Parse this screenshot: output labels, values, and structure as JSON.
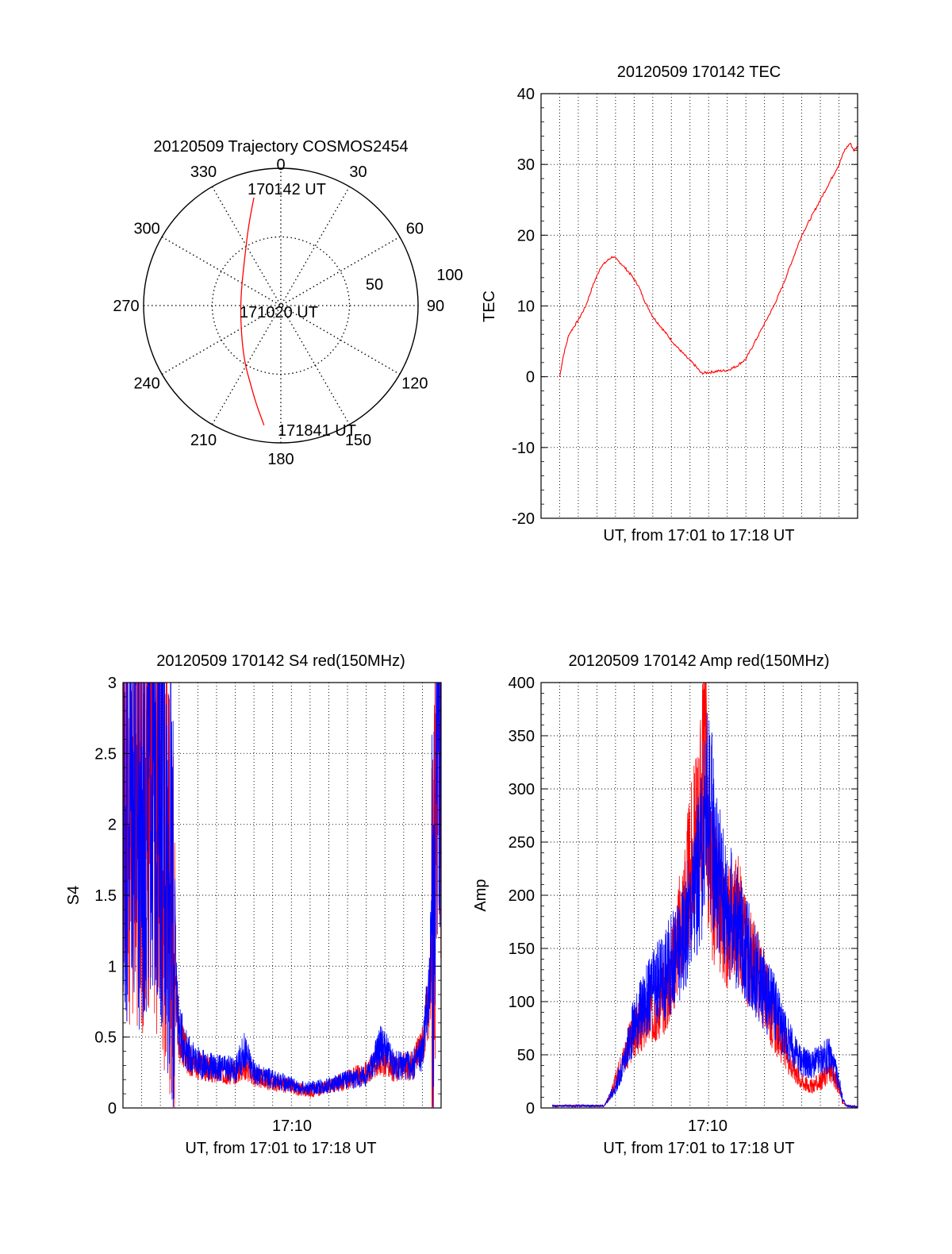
{
  "panels": {
    "polar": {
      "title": "20120509 Trajectory COSMOS2454"
    },
    "tec": {
      "title": "20120509 170142 TEC",
      "xlabel": "UT, from 17:01 to 17:18 UT",
      "ylabel": "TEC"
    },
    "s4": {
      "title": "20120509 170142 S4 red(150MHz)",
      "xlabel": "UT, from 17:01 to 17:18 UT",
      "ylabel": "S4",
      "xtick": "17:10"
    },
    "amp": {
      "title": "20120509 170142 Amp red(150MHz)",
      "xlabel": "UT, from 17:01 to 17:18 UT",
      "ylabel": "Amp",
      "xtick": "17:10"
    }
  },
  "colors": {
    "red": "#ff0000",
    "blue": "#0000ff",
    "grid": "#000000",
    "frame": "#000000"
  },
  "chart_data": [
    {
      "type": "scatter",
      "name": "polar-trajectory",
      "title": "20120509 Trajectory COSMOS2454",
      "azimuth_labels": [
        "0",
        "30",
        "60",
        "90",
        "120",
        "150",
        "180",
        "210",
        "240",
        "270",
        "300",
        "330"
      ],
      "radial_labels": [
        "50",
        "100"
      ],
      "radial_range": [
        0,
        100
      ],
      "time_labels": [
        "170142 UT",
        "171020 UT",
        "171841 UT"
      ],
      "trajectory": [
        {
          "az": 346,
          "r": 81
        },
        {
          "az": 339,
          "r": 65
        },
        {
          "az": 322,
          "r": 43
        },
        {
          "az": 283,
          "r": 30
        },
        {
          "az": 242,
          "r": 33
        },
        {
          "az": 214,
          "r": 48
        },
        {
          "az": 200,
          "r": 63
        },
        {
          "az": 194,
          "r": 74
        },
        {
          "az": 188,
          "r": 88
        }
      ]
    },
    {
      "type": "line",
      "name": "tec",
      "title": "20120509 170142 TEC",
      "xlabel": "UT, from 17:01 to 17:18 UT",
      "ylabel": "TEC",
      "xlim": [
        0,
        17
      ],
      "ylim": [
        -20,
        40
      ],
      "yticks": [
        -20,
        -10,
        0,
        10,
        20,
        30,
        40
      ],
      "grid": true,
      "series": [
        {
          "color": "#ff0000",
          "points": [
            [
              1,
              0
            ],
            [
              1.2,
              3
            ],
            [
              1.5,
              6
            ],
            [
              2,
              8
            ],
            [
              2.4,
              10
            ],
            [
              2.8,
              13
            ],
            [
              3.2,
              15.5
            ],
            [
              3.6,
              16.5
            ],
            [
              3.85,
              17
            ],
            [
              4.3,
              16
            ],
            [
              4.8,
              14.5
            ],
            [
              5.2,
              13
            ],
            [
              5.6,
              10.5
            ],
            [
              6,
              8.5
            ],
            [
              6.6,
              6.5
            ],
            [
              7.2,
              4.5
            ],
            [
              7.8,
              2.8
            ],
            [
              8.3,
              1.5
            ],
            [
              8.6,
              0.5
            ],
            [
              9,
              0.6
            ],
            [
              9.5,
              0.8
            ],
            [
              10,
              0.9
            ],
            [
              10.5,
              1.5
            ],
            [
              11,
              2.5
            ],
            [
              11.5,
              5
            ],
            [
              12,
              7.5
            ],
            [
              12.5,
              10
            ],
            [
              13,
              13
            ],
            [
              13.5,
              16.5
            ],
            [
              14,
              20
            ],
            [
              14.5,
              22.5
            ],
            [
              15,
              25
            ],
            [
              15.5,
              27.5
            ],
            [
              16,
              30
            ],
            [
              16.3,
              32
            ],
            [
              16.6,
              33
            ],
            [
              16.8,
              32
            ],
            [
              17,
              32.5
            ]
          ]
        }
      ]
    },
    {
      "type": "line",
      "name": "s4",
      "title": "20120509 170142 S4 red(150MHz)",
      "xlabel": "UT, from 17:01 to 17:18 UT",
      "ylabel": "S4",
      "xtick_label": "17:10",
      "xlim": [
        0,
        17
      ],
      "ylim": [
        0,
        3
      ],
      "yticks": [
        0,
        0.5,
        1,
        1.5,
        2,
        2.5,
        3
      ],
      "grid": true,
      "series": [
        {
          "color": "#ff0000",
          "points": [
            [
              0,
              2.2
            ],
            [
              0.5,
              2
            ],
            [
              1,
              2.1
            ],
            [
              1.5,
              2.3
            ],
            [
              2,
              2
            ],
            [
              2.5,
              1.6
            ],
            [
              2.8,
              0.9
            ],
            [
              3,
              0.5
            ],
            [
              3.5,
              0.35
            ],
            [
              4,
              0.3
            ],
            [
              5,
              0.25
            ],
            [
              6,
              0.25
            ],
            [
              6.5,
              0.3
            ],
            [
              7,
              0.22
            ],
            [
              8,
              0.18
            ],
            [
              9,
              0.15
            ],
            [
              9.5,
              0.13
            ],
            [
              10,
              0.12
            ],
            [
              11,
              0.15
            ],
            [
              12,
              0.2
            ],
            [
              13,
              0.25
            ],
            [
              13.8,
              0.35
            ],
            [
              14.5,
              0.28
            ],
            [
              15.5,
              0.3
            ],
            [
              16,
              0.45
            ],
            [
              16.4,
              0.8
            ],
            [
              16.6,
              1.5
            ],
            [
              16.8,
              2.6
            ],
            [
              17,
              2.4
            ]
          ]
        },
        {
          "color": "#0000ff",
          "points": [
            [
              0,
              2.1
            ],
            [
              0.5,
              2.3
            ],
            [
              1,
              1.9
            ],
            [
              1.5,
              2.4
            ],
            [
              2,
              2.2
            ],
            [
              2.5,
              1.7
            ],
            [
              2.8,
              1
            ],
            [
              3,
              0.55
            ],
            [
              3.5,
              0.38
            ],
            [
              4,
              0.32
            ],
            [
              5,
              0.28
            ],
            [
              6,
              0.27
            ],
            [
              6.5,
              0.4
            ],
            [
              7,
              0.25
            ],
            [
              8,
              0.2
            ],
            [
              9,
              0.17
            ],
            [
              9.5,
              0.14
            ],
            [
              10,
              0.14
            ],
            [
              11,
              0.16
            ],
            [
              12,
              0.2
            ],
            [
              13,
              0.22
            ],
            [
              13.8,
              0.45
            ],
            [
              14.5,
              0.3
            ],
            [
              15.5,
              0.3
            ],
            [
              16,
              0.4
            ],
            [
              16.4,
              0.9
            ],
            [
              16.6,
              1.6
            ],
            [
              16.8,
              2.8
            ],
            [
              17,
              2.6
            ]
          ]
        }
      ]
    },
    {
      "type": "line",
      "name": "amp",
      "title": "20120509 170142 Amp red(150MHz)",
      "xlabel": "UT, from 17:01 to 17:18 UT",
      "ylabel": "Amp",
      "xtick_label": "17:10",
      "xlim": [
        0,
        17
      ],
      "ylim": [
        0,
        400
      ],
      "yticks": [
        0,
        50,
        100,
        150,
        200,
        250,
        300,
        350,
        400
      ],
      "grid": true,
      "series": [
        {
          "color": "#ff0000",
          "points": [
            [
              0.6,
              2
            ],
            [
              2,
              2
            ],
            [
              3.4,
              2
            ],
            [
              3.8,
              15
            ],
            [
              4.5,
              50
            ],
            [
              5,
              70
            ],
            [
              6,
              90
            ],
            [
              6.8,
              110
            ],
            [
              7.5,
              170
            ],
            [
              8.2,
              240
            ],
            [
              8.6,
              280
            ],
            [
              8.8,
              375
            ],
            [
              9,
              220
            ],
            [
              9.5,
              190
            ],
            [
              10,
              170
            ],
            [
              10.5,
              185
            ],
            [
              11,
              150
            ],
            [
              11.5,
              130
            ],
            [
              12,
              110
            ],
            [
              12.5,
              80
            ],
            [
              13,
              60
            ],
            [
              13.5,
              40
            ],
            [
              14,
              25
            ],
            [
              14.5,
              20
            ],
            [
              15,
              25
            ],
            [
              15.5,
              35
            ],
            [
              16,
              20
            ],
            [
              16.2,
              5
            ],
            [
              16.4,
              2
            ],
            [
              17,
              1
            ]
          ]
        },
        {
          "color": "#0000ff",
          "points": [
            [
              0.6,
              2
            ],
            [
              2,
              2
            ],
            [
              3.4,
              2
            ],
            [
              4,
              20
            ],
            [
              4.5,
              45
            ],
            [
              5,
              80
            ],
            [
              6,
              110
            ],
            [
              6.8,
              130
            ],
            [
              7.5,
              150
            ],
            [
              8.2,
              200
            ],
            [
              8.6,
              230
            ],
            [
              8.8,
              270
            ],
            [
              9,
              290
            ],
            [
              9.5,
              220
            ],
            [
              10,
              190
            ],
            [
              10.5,
              170
            ],
            [
              11,
              150
            ],
            [
              11.5,
              130
            ],
            [
              12,
              110
            ],
            [
              12.5,
              95
            ],
            [
              13,
              75
            ],
            [
              13.5,
              55
            ],
            [
              14,
              45
            ],
            [
              14.5,
              40
            ],
            [
              15,
              45
            ],
            [
              15.5,
              50
            ],
            [
              16,
              25
            ],
            [
              16.2,
              8
            ],
            [
              16.4,
              2
            ],
            [
              17,
              1
            ]
          ]
        }
      ]
    }
  ]
}
